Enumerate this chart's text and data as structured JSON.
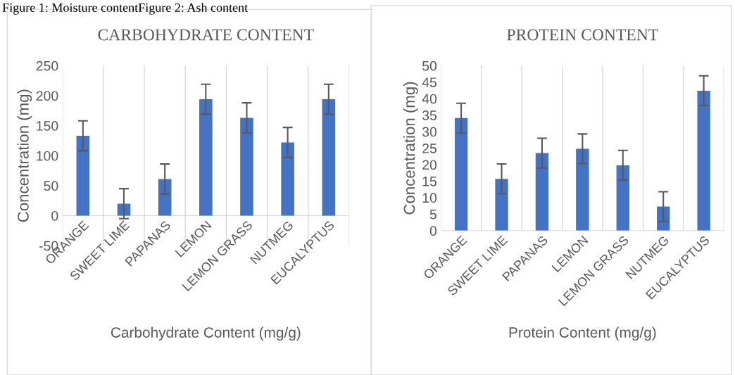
{
  "chart_data": [
    {
      "type": "bar",
      "title": "CARBOHYDRATE CONTENT",
      "xlabel": "Carbohydrate Content (mg/g)",
      "ylabel": "Concentration (mg)",
      "annotations": [
        "Figure 1: Moisture contentFigure 2: Ash content"
      ],
      "categories": [
        "ORANGE",
        "SWEET LIME",
        "PAPANAS",
        "LEMON",
        "LEMON GRASS",
        "NUTMEG",
        "EUCALYPTUS"
      ],
      "values": [
        133,
        20,
        61,
        194,
        163,
        122,
        194
      ],
      "errors": [
        25,
        25,
        25,
        25,
        25,
        25,
        25
      ],
      "color": "#4472c4",
      "ylim": [
        -50,
        250
      ],
      "yticks": [
        -50,
        0,
        50,
        100,
        150,
        200,
        250
      ],
      "grid": "x"
    },
    {
      "type": "bar",
      "title": "PROTEIN CONTENT",
      "xlabel": "Protein Content (mg/g)",
      "ylabel": "Concentration (mg)",
      "categories": [
        "ORANGE",
        "SWEET LIME",
        "PAPANAS",
        "LEMON",
        "LEMON GRASS",
        "NUTMEG",
        "EUCALYPTUS"
      ],
      "values": [
        34.1,
        15.7,
        23.5,
        24.8,
        19.8,
        7.3,
        42.4
      ],
      "errors": [
        4.5,
        4.5,
        4.5,
        4.5,
        4.5,
        4.5,
        4.5
      ],
      "color": "#4472c4",
      "ylim": [
        0,
        50
      ],
      "yticks": [
        0,
        5,
        10,
        15,
        20,
        25,
        30,
        35,
        40,
        45,
        50
      ],
      "grid": "x"
    }
  ]
}
